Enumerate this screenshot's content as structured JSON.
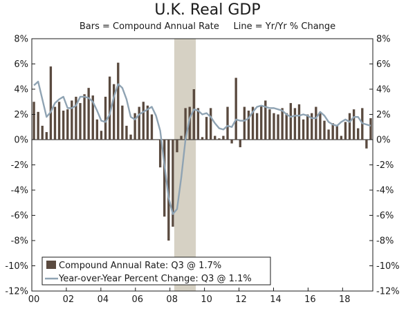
{
  "chart_data": {
    "type": "bar",
    "title": "U.K. Real GDP",
    "subtitle": "Bars = Compound Annual Rate     Line = Yr/Yr % Change",
    "xlabel": "",
    "ylabel": "",
    "ylim": [
      -12,
      8
    ],
    "yticks": [
      8,
      6,
      4,
      2,
      0,
      -2,
      -4,
      -6,
      -8,
      -10,
      -12
    ],
    "ytick_labels": [
      "8%",
      "6%",
      "4%",
      "2%",
      "0%",
      "-2%",
      "-4%",
      "-6%",
      "-8%",
      "-10%",
      "-12%"
    ],
    "x_start": 2000.0,
    "x_end": 2019.75,
    "xticks": [
      2000,
      2002,
      2004,
      2006,
      2008,
      2010,
      2012,
      2014,
      2016,
      2018
    ],
    "xtick_labels": [
      "00",
      "02",
      "04",
      "06",
      "08",
      "10",
      "12",
      "14",
      "16",
      "18"
    ],
    "recession": {
      "start": 2008.25,
      "end": 2009.5
    },
    "legend": {
      "placement": "bottom-left",
      "bar_label": "Compound Annual Rate: Q3 @ 1.7%",
      "line_label": "Year-over-Year Percent Change: Q3 @ 1.1%"
    },
    "colors": {
      "bar": "#5a4a3f",
      "line": "#8fa3b3",
      "recession": "#d6d1c4",
      "axis": "#1a1a1a"
    },
    "series": [
      {
        "name": "Compound Annual Rate",
        "type": "bar",
        "values": [
          3.0,
          2.2,
          1.1,
          0.6,
          5.8,
          2.6,
          3.0,
          2.3,
          2.4,
          3.1,
          3.4,
          2.9,
          3.6,
          4.1,
          3.5,
          1.6,
          0.7,
          3.4,
          5.0,
          4.4,
          6.1,
          2.7,
          1.1,
          0.4,
          2.1,
          2.6,
          3.0,
          2.7,
          2.0,
          0.0,
          -2.2,
          -6.1,
          -8.0,
          -6.9,
          -1.0,
          0.3,
          2.5,
          2.6,
          4.0,
          2.5,
          0.2,
          1.8,
          2.5,
          0.3,
          0.1,
          0.3,
          2.6,
          -0.3,
          4.9,
          -0.6,
          2.6,
          2.3,
          2.6,
          2.1,
          2.7,
          3.1,
          2.4,
          2.1,
          2.0,
          2.5,
          2.1,
          2.9,
          2.5,
          2.8,
          1.6,
          2.0,
          2.1,
          2.6,
          2.2,
          1.5,
          0.8,
          1.3,
          1.1,
          0.3,
          1.4,
          2.1,
          2.4,
          0.9,
          2.5,
          -0.7,
          1.7
        ]
      },
      {
        "name": "Year-over-Year Percent Change",
        "type": "line",
        "values": [
          4.3,
          4.6,
          3.2,
          1.8,
          2.2,
          2.9,
          3.2,
          3.4,
          2.5,
          2.5,
          2.7,
          3.4,
          3.4,
          3.3,
          3.0,
          2.3,
          1.5,
          1.4,
          2.0,
          3.4,
          4.4,
          4.1,
          3.2,
          1.8,
          1.6,
          2.0,
          2.2,
          2.4,
          2.6,
          1.9,
          0.7,
          -2.0,
          -4.6,
          -5.9,
          -5.5,
          -3.0,
          0.0,
          1.7,
          2.4,
          2.3,
          2.0,
          2.1,
          1.8,
          1.3,
          0.9,
          0.8,
          1.1,
          1.0,
          1.6,
          1.5,
          1.5,
          1.7,
          2.2,
          2.6,
          2.7,
          2.6,
          2.5,
          2.5,
          2.4,
          2.3,
          2.0,
          1.8,
          1.9,
          1.9,
          2.0,
          1.9,
          1.7,
          1.7,
          2.2,
          1.9,
          1.4,
          1.2,
          1.1,
          1.4,
          1.6,
          1.4,
          1.8,
          1.8,
          1.3,
          1.2,
          1.1
        ]
      }
    ]
  }
}
